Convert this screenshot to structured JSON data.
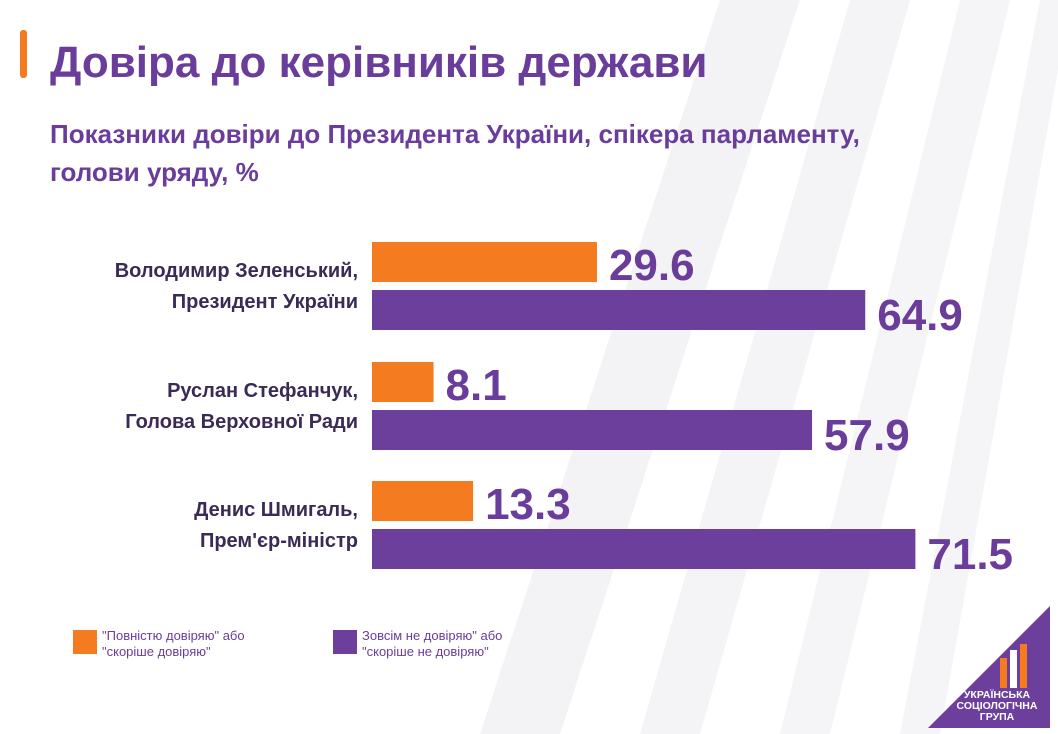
{
  "header": {
    "title": "Довіра до керівників держави",
    "subtitle": "Показники довіри до Президента України, спікера парламенту, голови уряду, %"
  },
  "colors": {
    "trust": "#f47b20",
    "distrust": "#6d3f9c",
    "text": "#6a3d9a",
    "label": "#3a2a55"
  },
  "chart_data": {
    "type": "bar",
    "orientation": "horizontal",
    "unit": "%",
    "categories": [
      "Володимир Зеленський,\nПрезидент України",
      "Руслан Стефанчук,\nГолова Верховної Ради",
      "Денис Шмигаль,\nПрем'єр-міністр"
    ],
    "series": [
      {
        "name": "\"Повністю довіряю\" або\n\"скоріше довіряю\"",
        "color": "#f47b20",
        "values": [
          29.6,
          8.1,
          13.3
        ]
      },
      {
        "name": "Зовсім не довіряю\" або\n\"скоріше не довіряю\"",
        "color": "#6d3f9c",
        "values": [
          64.9,
          57.9,
          71.5
        ]
      }
    ],
    "data_labels": [
      [
        "29.6",
        "8.1",
        "13.3"
      ],
      [
        "64.9",
        "57.9",
        "71.5"
      ]
    ],
    "legend_position": "bottom-left",
    "grid": false
  },
  "logo": {
    "text": "УКРАЇНСЬКА\nСОЦІОЛОГІЧНА\nГРУПА",
    "icon": "bars-logo-icon"
  }
}
